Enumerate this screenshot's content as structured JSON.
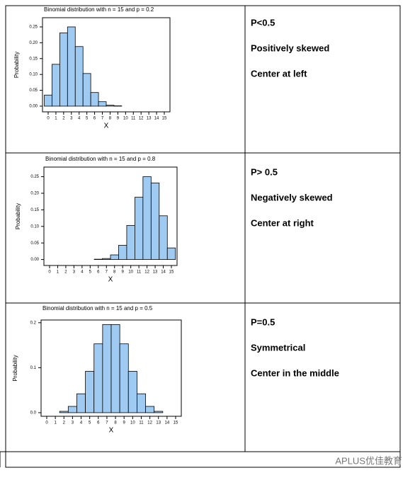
{
  "chart_data": [
    {
      "type": "bar",
      "title": "Binomial distribution with n = 15 and p = 0.2",
      "x_label": "X",
      "y_label": "Probability",
      "color": "#9fcbf3",
      "categories": [
        "0",
        "1",
        "2",
        "3",
        "4",
        "5",
        "6",
        "7",
        "8",
        "9",
        "10",
        "11",
        "12",
        "13",
        "14",
        "15"
      ],
      "values": [
        0.035,
        0.132,
        0.231,
        0.25,
        0.188,
        0.103,
        0.043,
        0.014,
        0.003,
        0.001,
        0,
        0,
        0,
        0,
        0,
        0
      ],
      "ylim": [
        -0.018,
        0.279
      ],
      "yticks": [
        {
          "value": 0,
          "label": "0.00"
        },
        {
          "value": 0.05,
          "label": "0.05"
        },
        {
          "value": 0.1,
          "label": "0.10"
        },
        {
          "value": 0.15,
          "label": "0.15"
        },
        {
          "value": 0.2,
          "label": "0.20"
        },
        {
          "value": 0.25,
          "label": "0.25"
        }
      ]
    },
    {
      "type": "bar",
      "title": "Binomial distribution with n = 15 and p = 0.8",
      "x_label": "X",
      "y_label": "Probability",
      "color": "#9fcbf3",
      "categories": [
        "0",
        "1",
        "2",
        "3",
        "4",
        "5",
        "6",
        "7",
        "8",
        "9",
        "10",
        "11",
        "12",
        "13",
        "14",
        "15"
      ],
      "values": [
        0,
        0,
        0,
        0,
        0,
        0,
        0.001,
        0.003,
        0.014,
        0.043,
        0.103,
        0.188,
        0.25,
        0.231,
        0.132,
        0.035
      ],
      "ylim": [
        -0.018,
        0.279
      ],
      "yticks": [
        {
          "value": 0,
          "label": "0.00"
        },
        {
          "value": 0.05,
          "label": "0.05"
        },
        {
          "value": 0.1,
          "label": "0.10"
        },
        {
          "value": 0.15,
          "label": "0.15"
        },
        {
          "value": 0.2,
          "label": "0.20"
        },
        {
          "value": 0.25,
          "label": "0.25"
        }
      ]
    },
    {
      "type": "bar",
      "title": "Binomial distribution with n = 15 and p = 0.5",
      "x_label": "X",
      "y_label": "Probability",
      "color": "#9fcbf3",
      "categories": [
        "0",
        "1",
        "2",
        "3",
        "4",
        "5",
        "6",
        "7",
        "8",
        "9",
        "10",
        "11",
        "12",
        "13",
        "14",
        "15"
      ],
      "values": [
        0,
        0,
        0.003,
        0.014,
        0.042,
        0.092,
        0.153,
        0.196,
        0.196,
        0.153,
        0.092,
        0.042,
        0.014,
        0.003,
        0,
        0
      ],
      "ylim": [
        -0.008,
        0.206
      ],
      "yticks": [
        {
          "value": 0,
          "label": "0.0"
        },
        {
          "value": 0.1,
          "label": "0.1"
        },
        {
          "value": 0.2,
          "label": "0.2"
        }
      ]
    }
  ],
  "table": {
    "rows": [
      [
        "P<0.5",
        "Positively skewed",
        "Center at left"
      ],
      [
        "P> 0.5",
        "Negatively skewed",
        "Center at right"
      ],
      [
        "P=0.5",
        "Symmetrical",
        "Center in the middle"
      ]
    ]
  },
  "watermark": "APLUS优佳教育"
}
